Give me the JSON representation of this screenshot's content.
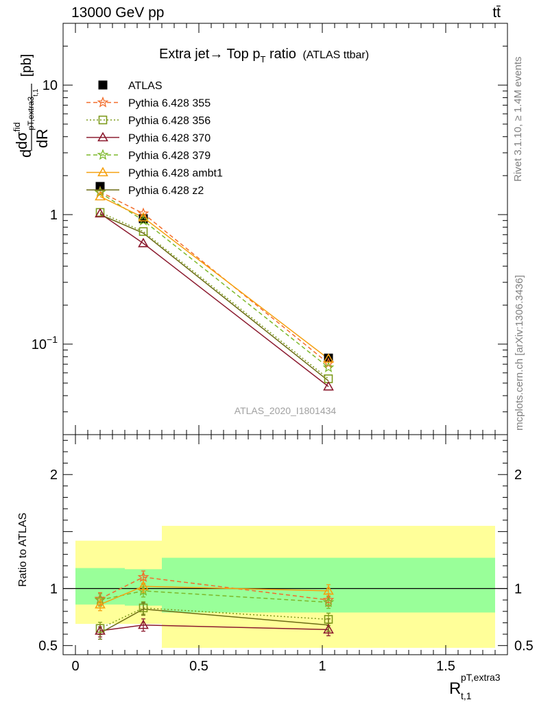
{
  "header": {
    "left": "13000 GeV pp",
    "right": "tt̄"
  },
  "side_labels": {
    "rivet": "Rivet 3.1.10, ≥ 1.4M events",
    "mcplots": "mcplots.cern.ch [arXiv:1306.3436]"
  },
  "chart_data": {
    "type": "line",
    "title": "Extra jet→ Top p_T ratio",
    "title_main": "Extra jet",
    "title_arrow": "→",
    "title_mid": " Top p",
    "title_sub": "T",
    "title_end": " ratio",
    "title_suffix": "(ATLAS ttbar)",
    "watermark": "ATLAS_2020_I1801434",
    "ylabel": "dσ^fid / dR^pT,extra3_t,1 [pb]",
    "ylabel_parts": {
      "d1": "d",
      "sigma": "dσ",
      "sigma_sup": "fid",
      "sigma_sub": "pT,extra3",
      "sigma_sub2": "t,1",
      "den": "dR",
      "unit": "[pb]"
    },
    "xlabel": "R^pT,extra3_t,1",
    "xlabel_parts": {
      "base": "R",
      "sup": "pT,extra3",
      "sub": "t,1"
    },
    "yscale": "log",
    "ylim": [
      0.02,
      30
    ],
    "xlim": [
      -0.05,
      1.75
    ],
    "y_ticks": [
      {
        "value": 0.1,
        "label_base": "10",
        "label_exp": "−1"
      },
      {
        "value": 1,
        "label_base": "1",
        "label_exp": ""
      },
      {
        "value": 10,
        "label_base": "10",
        "label_exp": ""
      }
    ],
    "x_ticks": [
      {
        "value": 0,
        "label": "0"
      },
      {
        "value": 0.5,
        "label": "0.5"
      },
      {
        "value": 1,
        "label": "1"
      },
      {
        "value": 1.5,
        "label": "1.5"
      }
    ],
    "x": [
      0.1,
      0.275,
      1.025
    ],
    "data": {
      "name": "ATLAS",
      "values": [
        1.65,
        0.93,
        0.078
      ],
      "bin_edges": [
        0.0,
        0.2,
        0.35,
        1.7
      ]
    },
    "series": [
      {
        "name": "Pythia 6.428 355",
        "values": [
          1.5,
          1.02,
          0.071
        ],
        "color": "#f26c2a",
        "dash": "6,4",
        "marker": "star"
      },
      {
        "name": "Pythia 6.428 356",
        "values": [
          1.04,
          0.74,
          0.054
        ],
        "color": "#7c9a1a",
        "dash": "2,3",
        "marker": "square"
      },
      {
        "name": "Pythia 6.428 370",
        "values": [
          1.02,
          0.6,
          0.047
        ],
        "color": "#8b1a2e",
        "dash": "",
        "marker": "triangle"
      },
      {
        "name": "Pythia 6.428 379",
        "values": [
          1.48,
          0.9,
          0.066
        ],
        "color": "#7cb82a",
        "dash": "6,4",
        "marker": "star"
      },
      {
        "name": "Pythia 6.428 ambt1",
        "values": [
          1.38,
          0.95,
          0.077
        ],
        "color": "#f5a00f",
        "dash": "",
        "marker": "triangle"
      },
      {
        "name": "Pythia 6.428 z2",
        "values": [
          1.0,
          0.72,
          0.052
        ],
        "color": "#6b6b14",
        "dash": "",
        "marker": "line"
      }
    ],
    "ratio": {
      "ylabel": "Ratio to ATLAS",
      "ylim": [
        0.42,
        2.35
      ],
      "ticks": [
        {
          "value": 0.5,
          "label": "0.5"
        },
        {
          "value": 1,
          "label": "1"
        },
        {
          "value": 2,
          "label": "2"
        }
      ],
      "bands": [
        {
          "x0": 0.0,
          "x1": 0.2,
          "inner": [
            0.86,
            1.18
          ],
          "outer": [
            0.69,
            1.42
          ]
        },
        {
          "x0": 0.2,
          "x1": 0.35,
          "inner": [
            0.85,
            1.17
          ],
          "outer": [
            0.69,
            1.42
          ]
        },
        {
          "x0": 0.35,
          "x1": 1.7,
          "inner": [
            0.79,
            1.27
          ],
          "outer": [
            0.48,
            1.55
          ]
        }
      ],
      "series_values": [
        [
          0.91,
          1.1,
          0.9
        ],
        [
          0.65,
          0.83,
          0.73
        ],
        [
          0.63,
          0.68,
          0.64
        ],
        [
          0.9,
          0.98,
          0.88
        ],
        [
          0.86,
          1.02,
          0.98
        ],
        [
          0.61,
          0.82,
          0.68
        ]
      ]
    }
  }
}
